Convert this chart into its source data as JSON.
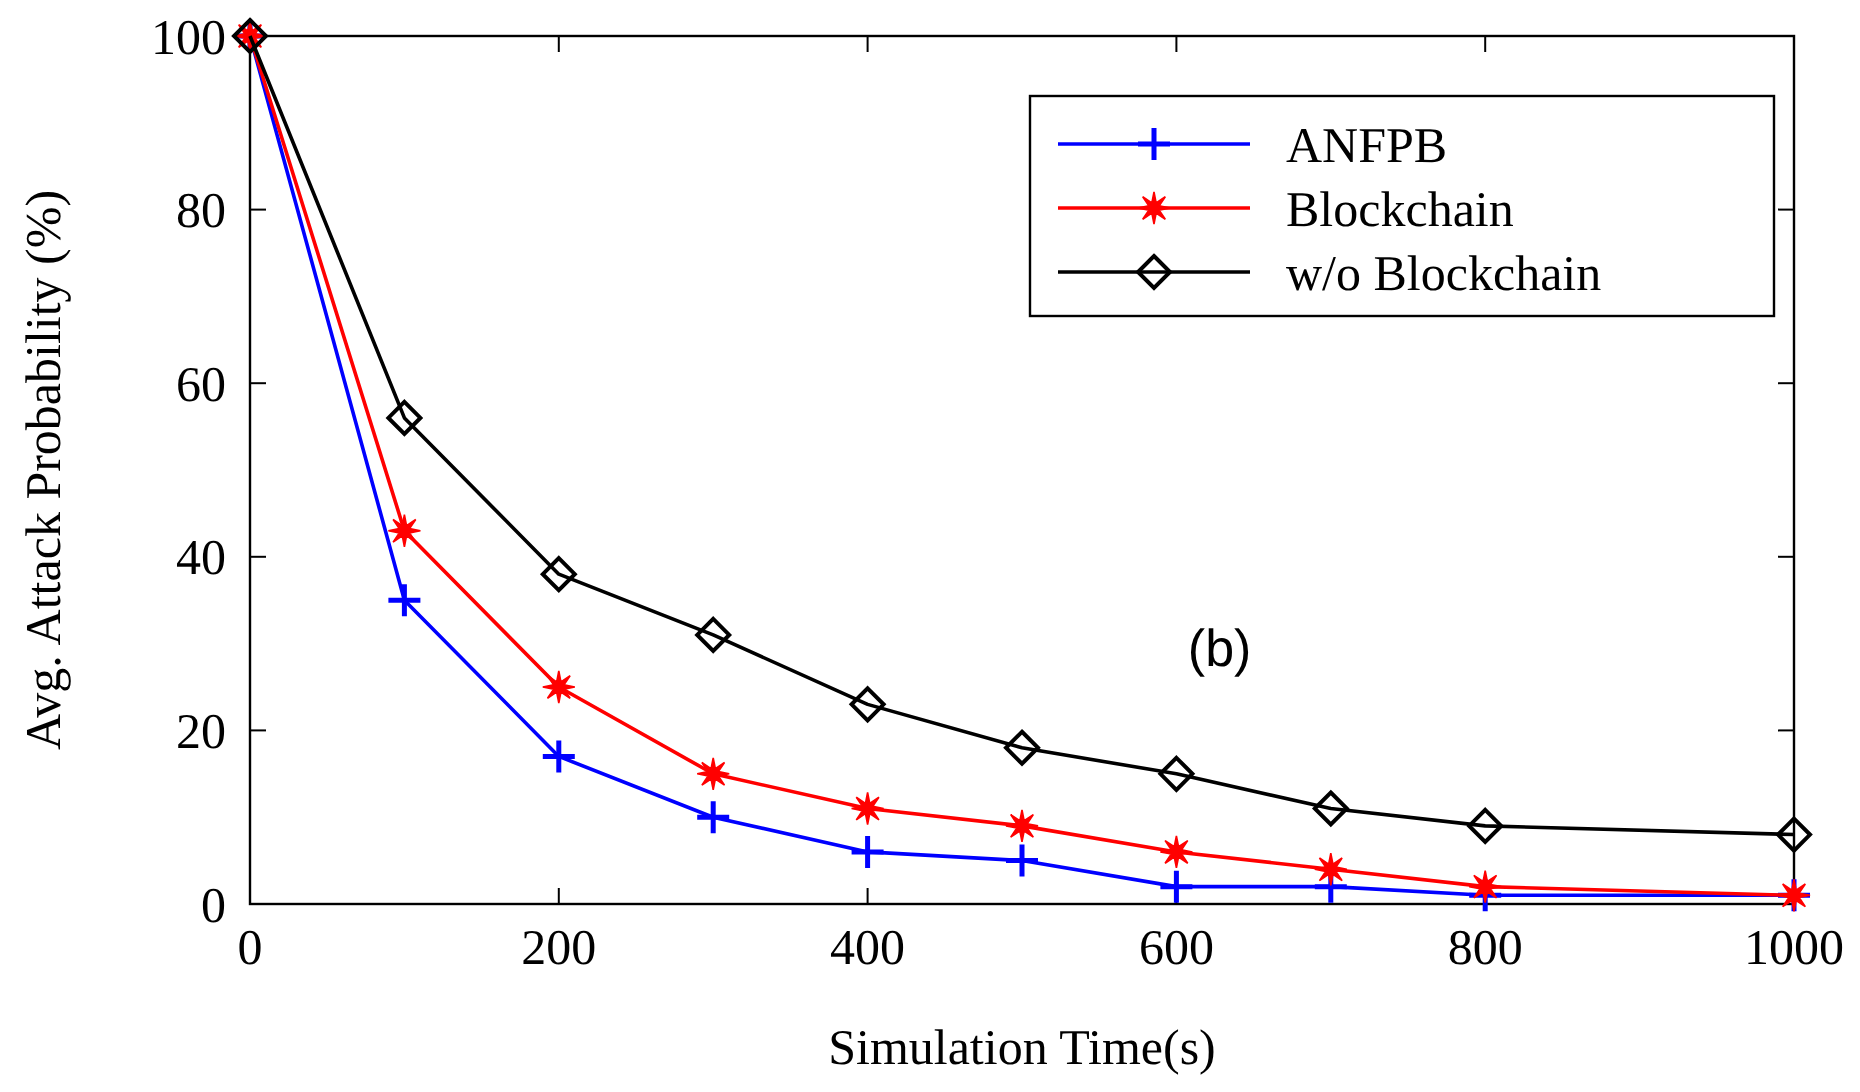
{
  "chart_data": {
    "type": "line",
    "xlabel": "Simulation Time(s)",
    "ylabel": "Avg. Attack Probability (%)",
    "x": [
      0,
      100,
      200,
      300,
      400,
      500,
      600,
      700,
      800,
      900,
      1000
    ],
    "series": [
      {
        "name": "ANFPB",
        "color": "#0000ff",
        "marker": "cross",
        "values": [
          100,
          35,
          17,
          10,
          6,
          5,
          2,
          2,
          1,
          null,
          1
        ]
      },
      {
        "name": "Blockchain",
        "color": "#ff0000",
        "marker": "star",
        "values": [
          100,
          43,
          25,
          15,
          11,
          9,
          6,
          4,
          2,
          null,
          1
        ]
      },
      {
        "name": "w/o Blockchain",
        "color": "#000000",
        "marker": "diamond",
        "values": [
          100,
          56,
          38,
          31,
          23,
          18,
          15,
          11,
          9,
          null,
          8
        ]
      }
    ],
    "xlim": [
      0,
      1000
    ],
    "xticks": [
      0,
      200,
      400,
      600,
      800,
      1000
    ],
    "ylim": [
      0,
      100
    ],
    "yticks": [
      0,
      20,
      40,
      60,
      80,
      100
    ],
    "legend": "top right",
    "grid": false,
    "line_style": "solid",
    "annotations": [
      "(b)"
    ]
  }
}
